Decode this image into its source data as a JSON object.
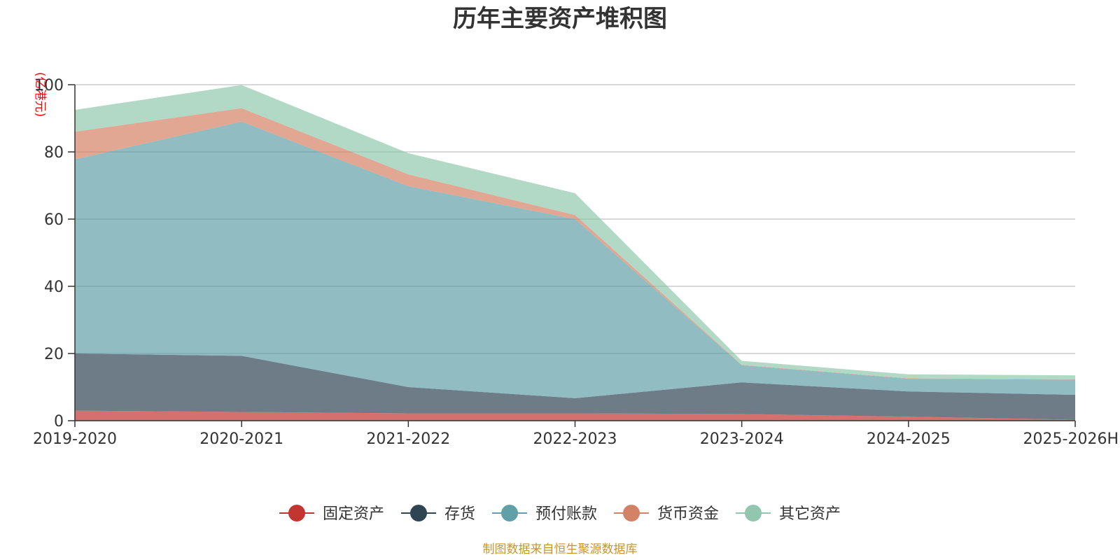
{
  "chart_data": {
    "type": "area",
    "stacked": true,
    "title": "历年主要资产堆积图",
    "ylabel": "(亿港元)",
    "xlabel": "",
    "ylim": [
      0,
      100
    ],
    "yticks": [
      0,
      20,
      40,
      60,
      80,
      100
    ],
    "ytick_labels": [
      "0",
      "20",
      "40",
      "60",
      "80",
      "100"
    ],
    "grid": true,
    "legend_position": "bottom-center",
    "categories": [
      "2019-2020",
      "2020-2021",
      "2021-2022",
      "2022-2023",
      "2023-2024",
      "2024-2025",
      "2025-2026H"
    ],
    "series": [
      {
        "name": "固定资产",
        "color": "#c23531",
        "values": [
          3.0,
          2.6,
          2.2,
          2.2,
          2.0,
          1.2,
          0.3
        ]
      },
      {
        "name": "存货",
        "color": "#2f4554",
        "values": [
          17.0,
          16.7,
          7.8,
          4.5,
          9.4,
          7.5,
          7.4
        ]
      },
      {
        "name": "预付账款",
        "color": "#61a0a8",
        "values": [
          57.8,
          69.7,
          59.8,
          53.3,
          5.1,
          3.8,
          4.5
        ]
      },
      {
        "name": "货币资金",
        "color": "#d48265",
        "values": [
          8.2,
          4.0,
          3.5,
          1.2,
          0.1,
          0.1,
          0.1
        ]
      },
      {
        "name": "其它资产",
        "color": "#91c7ae",
        "values": [
          6.5,
          6.9,
          6.3,
          6.5,
          1.2,
          1.2,
          1.2
        ]
      }
    ],
    "source_note": "制图数据来自恒生聚源数据库"
  }
}
